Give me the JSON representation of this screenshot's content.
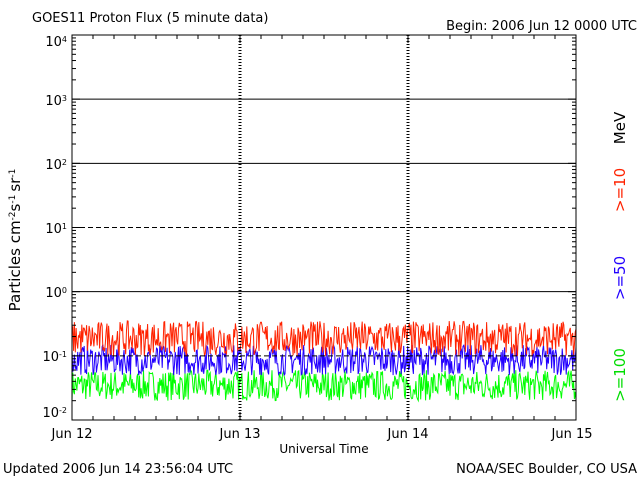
{
  "chart_data": {
    "type": "line",
    "title": "GOES11 Proton Flux (5 minute data)",
    "begin_label": "Begin: 2006 Jun 12 0000 UTC",
    "xlabel": "Universal Time",
    "ylabel_main": "Particles cm",
    "ylabel_sup1": "-2",
    "ylabel_s": "s",
    "ylabel_sup2": "-1",
    "ylabel_sr": "sr",
    "ylabel_sup3": "-1",
    "x_ticks": [
      "Jun 12",
      "Jun 13",
      "Jun 14",
      "Jun 15"
    ],
    "y_scale": "log",
    "ylim": [
      0.01,
      10000
    ],
    "y_ticks": [
      {
        "base": "10",
        "exp": "4"
      },
      {
        "base": "10",
        "exp": "3"
      },
      {
        "base": "10",
        "exp": "2"
      },
      {
        "base": "10",
        "exp": "1"
      },
      {
        "base": "10",
        "exp": "0"
      },
      {
        "base": "10",
        "exp": "-1"
      },
      {
        "base": "10",
        "exp": "-2"
      }
    ],
    "reference_lines": [
      {
        "value": 1000,
        "style": "solid"
      },
      {
        "value": 100,
        "style": "solid"
      },
      {
        "value": 10,
        "style": "dashed"
      },
      {
        "value": 1,
        "style": "solid"
      },
      {
        "value": 0.1,
        "style": "dashed"
      }
    ],
    "series": [
      {
        "name": ">=10",
        "color": "#ff2200",
        "typical_range": [
          0.1,
          0.35
        ]
      },
      {
        "name": ">=50",
        "color": "#2200ff",
        "typical_range": [
          0.05,
          0.15
        ]
      },
      {
        "name": ">=100",
        "color": "#00ff00",
        "typical_range": [
          0.02,
          0.06
        ]
      }
    ],
    "legend_unit": "MeV",
    "legend_position": "right"
  },
  "footer": {
    "updated": "Updated 2006 Jun 14 23:56:04 UTC",
    "source": "NOAA/SEC Boulder, CO USA"
  }
}
